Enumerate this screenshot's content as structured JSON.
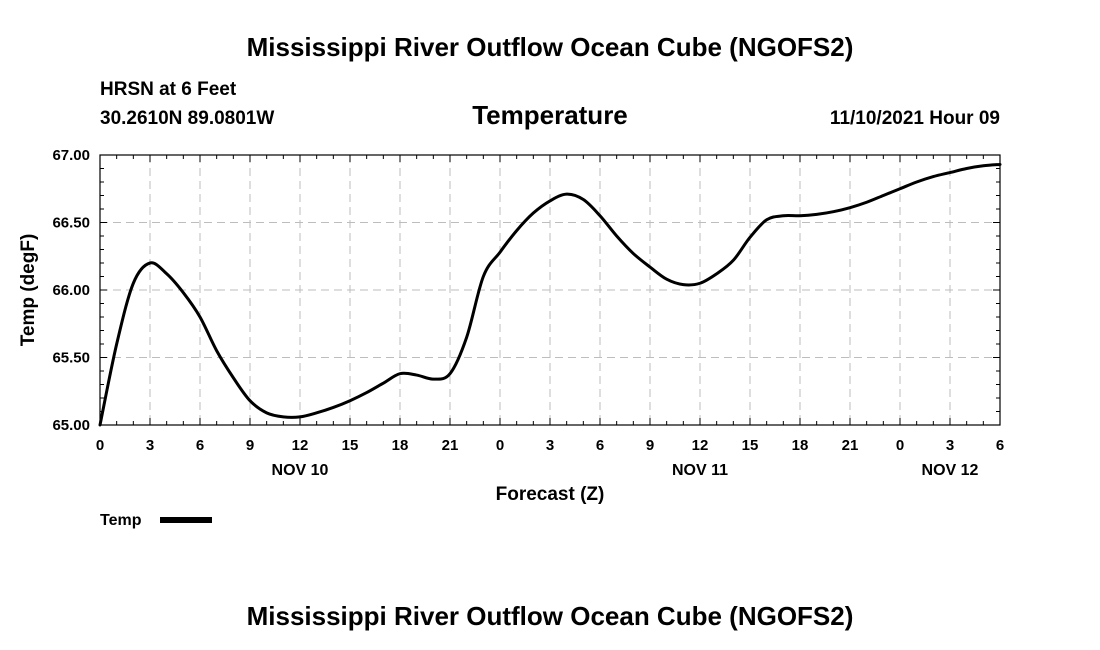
{
  "page": {
    "title_top": "Mississippi River Outflow Ocean Cube (NGOFS2)",
    "title_bottom": "Mississippi River Outflow Ocean Cube (NGOFS2)",
    "station": "HRSN at 6 Feet",
    "coords": "30.2610N  89.0801W",
    "date": "11/10/2021 Hour 09"
  },
  "chart_data": {
    "type": "line",
    "title": "Temperature",
    "xlabel": "Forecast (Z)",
    "ylabel": "Temp (degF)",
    "ylim": [
      65.0,
      67.0
    ],
    "xlim": [
      0,
      54
    ],
    "grid": true,
    "yticks": [
      "65.00",
      "65.50",
      "66.00",
      "66.50",
      "67.00"
    ],
    "ytick_values": [
      65.0,
      65.5,
      66.0,
      66.5,
      67.0
    ],
    "xtick_labels": [
      "0",
      "3",
      "6",
      "9",
      "12",
      "15",
      "18",
      "21",
      "0",
      "3",
      "6",
      "9",
      "12",
      "15",
      "18",
      "21",
      "0",
      "3",
      "6"
    ],
    "date_labels": [
      {
        "text": "NOV 10",
        "hour": 12
      },
      {
        "text": "NOV 11",
        "hour": 36
      },
      {
        "text": "NOV 12",
        "hour": 51
      }
    ],
    "legend": "Temp",
    "legend_position": "bottom-left",
    "series": [
      {
        "name": "Temp",
        "x": [
          0,
          1,
          2,
          3,
          4,
          5,
          6,
          7,
          8,
          9,
          10,
          11,
          12,
          13,
          14,
          15,
          16,
          17,
          18,
          19,
          20,
          21,
          22,
          23,
          24,
          25,
          26,
          27,
          28,
          29,
          30,
          31,
          32,
          33,
          34,
          35,
          36,
          37,
          38,
          39,
          40,
          41,
          42,
          43,
          44,
          45,
          46,
          47,
          48,
          49,
          50,
          51,
          52,
          53,
          54
        ],
        "values": [
          65.0,
          65.6,
          66.05,
          66.2,
          66.12,
          65.98,
          65.8,
          65.55,
          65.35,
          65.18,
          65.09,
          65.06,
          65.06,
          65.09,
          65.13,
          65.18,
          65.24,
          65.31,
          65.38,
          65.37,
          65.34,
          65.38,
          65.65,
          66.1,
          66.28,
          66.44,
          66.57,
          66.66,
          66.71,
          66.67,
          66.55,
          66.4,
          66.27,
          66.17,
          66.08,
          66.04,
          66.05,
          66.12,
          66.22,
          66.39,
          66.52,
          66.55,
          66.55,
          66.56,
          66.58,
          66.61,
          66.65,
          66.7,
          66.75,
          66.8,
          66.84,
          66.87,
          66.9,
          66.92,
          66.93
        ]
      }
    ]
  }
}
